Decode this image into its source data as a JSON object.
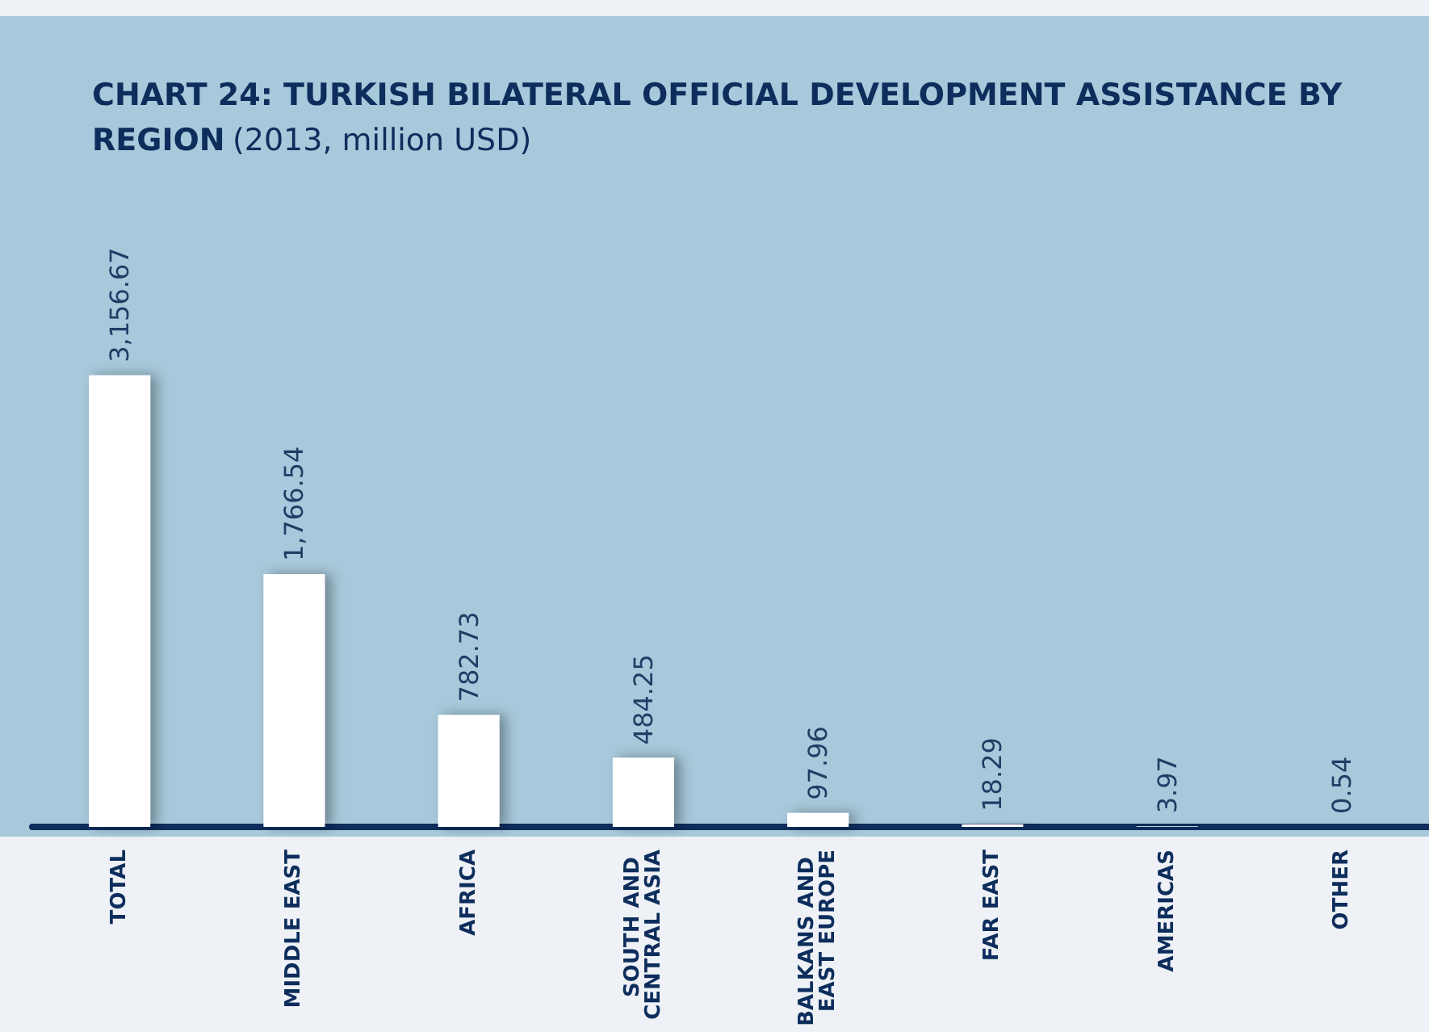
{
  "chart_data": {
    "type": "bar",
    "title": "CHART 24: TURKISH BILATERAL OFFICIAL DEVELOPMENT ASSISTANCE BY REGION",
    "subtitle": "(2013, million USD)",
    "categories": [
      "TOTAL",
      "MIDDLE EAST",
      "AFRICA",
      "SOUTH AND CENTRAL ASIA",
      "BALKANS AND EAST EUROPE",
      "FAR EAST",
      "AMERICAS",
      "OTHER"
    ],
    "values": [
      3156.67,
      1766.54,
      782.73,
      484.25,
      97.96,
      18.29,
      3.97,
      0.54
    ],
    "value_labels": [
      "3,156.67",
      "1,766.54",
      "782.73",
      "484.25",
      "97.96",
      "18.29",
      "3.97",
      "0.54"
    ],
    "color": "#ffffff"
  }
}
